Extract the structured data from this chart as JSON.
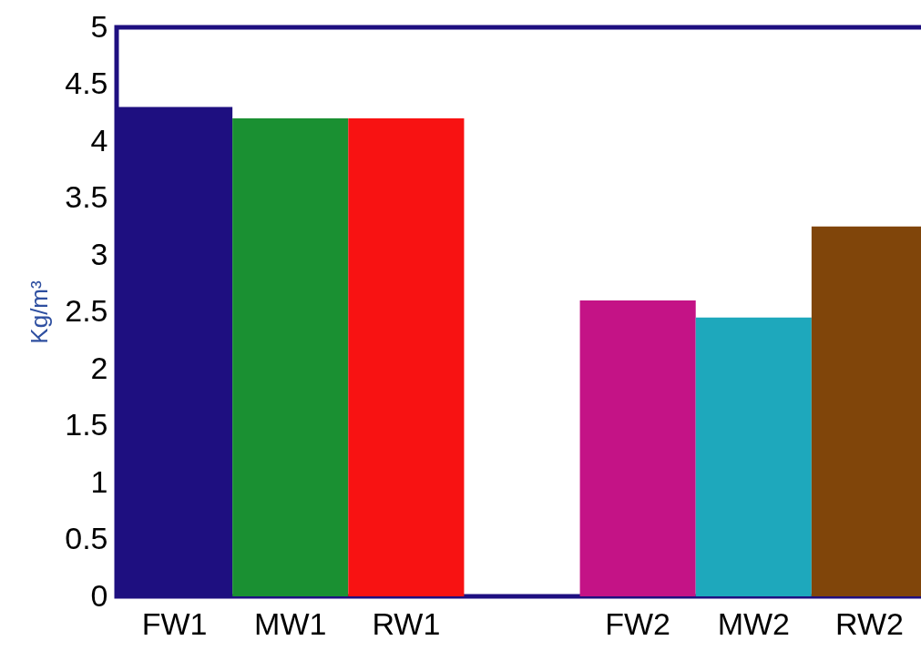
{
  "chart_data": {
    "type": "bar",
    "ylabel": "Kg/m³",
    "categories": [
      "FW1",
      "MW1",
      "RW1",
      null,
      "FW2",
      "MW2",
      "RW2"
    ],
    "values": [
      4.3,
      4.2,
      4.2,
      null,
      2.6,
      2.45,
      3.25
    ],
    "colors": [
      "#1e0f80",
      "#1a9032",
      "#f81212",
      null,
      "#c41386",
      "#1ea8bc",
      "#80450a"
    ],
    "ylim": [
      0,
      5
    ],
    "yticks": [
      0,
      0.5,
      1,
      1.5,
      2,
      2.5,
      3,
      3.5,
      4,
      4.5,
      5
    ],
    "grid": false
  }
}
